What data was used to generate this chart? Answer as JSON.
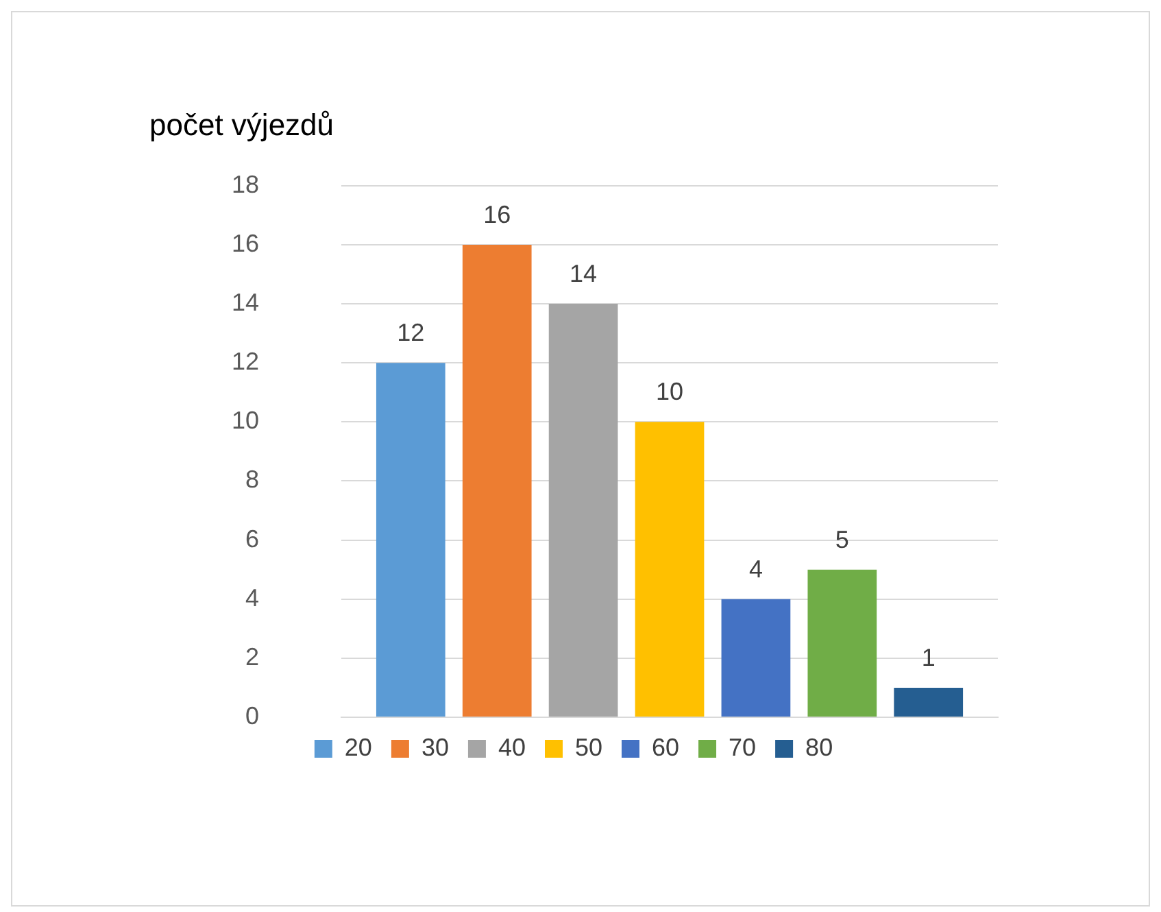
{
  "chart_data": {
    "type": "bar",
    "title": "počet výjezdů",
    "categories": [
      null
    ],
    "series": [
      {
        "name": "20",
        "color": "#5b9bd5",
        "values": [
          12
        ]
      },
      {
        "name": "30",
        "color": "#ed7d31",
        "values": [
          16
        ]
      },
      {
        "name": "40",
        "color": "#a5a5a5",
        "values": [
          14
        ]
      },
      {
        "name": "50",
        "color": "#ffc000",
        "values": [
          10
        ]
      },
      {
        "name": "60",
        "color": "#4472c4",
        "values": [
          4
        ]
      },
      {
        "name": "70",
        "color": "#70ad47",
        "values": [
          5
        ]
      },
      {
        "name": "80",
        "color": "#255e91",
        "values": [
          1
        ]
      }
    ],
    "ylim": [
      0,
      18
    ],
    "yticks": [
      0,
      2,
      4,
      6,
      8,
      10,
      12,
      14,
      16,
      18
    ],
    "grid": "y",
    "legend": "bottom",
    "data_labels": true
  }
}
